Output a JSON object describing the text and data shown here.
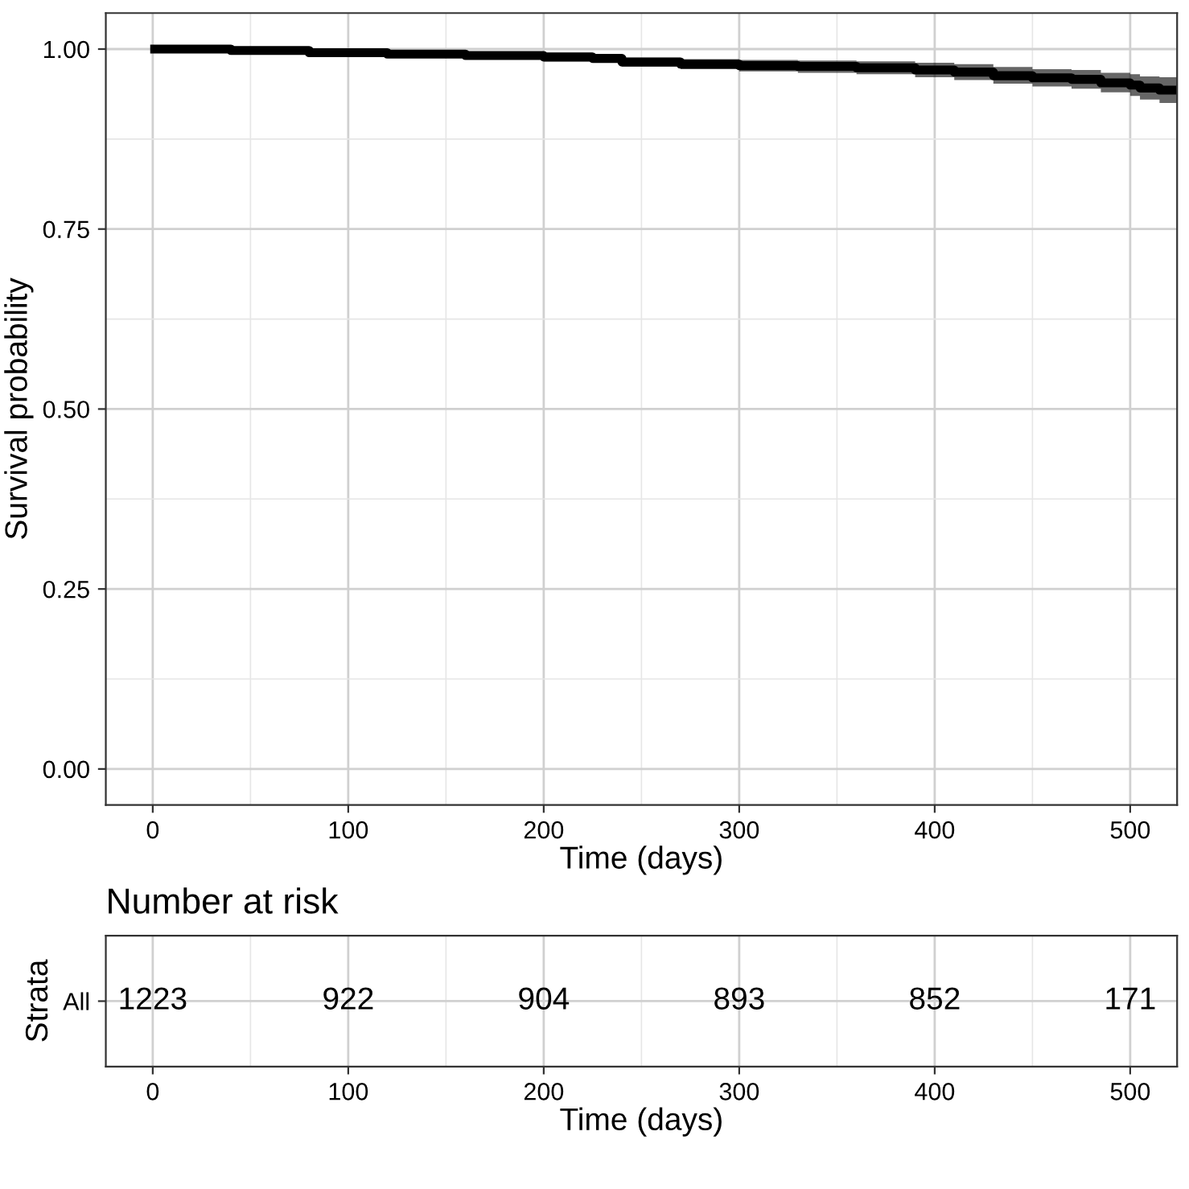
{
  "chart_data": [
    {
      "type": "step",
      "xlabel": "Time (days)",
      "ylabel": "Survival probability",
      "xlim": [
        -24,
        524
      ],
      "xticks": [
        0,
        100,
        200,
        300,
        400,
        500
      ],
      "ylim": [
        -0.05,
        1.05
      ],
      "yticks": [
        {
          "value": 0,
          "label": "0.00"
        },
        {
          "value": 0.25,
          "label": "0.25"
        },
        {
          "value": 0.5,
          "label": "0.50"
        },
        {
          "value": 0.75,
          "label": "0.75"
        },
        {
          "value": 1,
          "label": "1.00"
        }
      ],
      "grid": true,
      "line_style": "solid",
      "series": [
        {
          "color": "#000000",
          "x": [
            1,
            40,
            80,
            120,
            160,
            200,
            225,
            240,
            270,
            300,
            330,
            360,
            390,
            410,
            430,
            450,
            470,
            485,
            500,
            505,
            515,
            524
          ],
          "values": [
            1.0,
            0.998,
            0.995,
            0.993,
            0.991,
            0.989,
            0.987,
            0.982,
            0.979,
            0.977,
            0.976,
            0.974,
            0.971,
            0.968,
            0.963,
            0.96,
            0.958,
            0.953,
            0.95,
            0.946,
            0.943,
            0.943
          ],
          "lower": [
            1.0,
            0.996,
            0.992,
            0.989,
            0.986,
            0.983,
            0.981,
            0.976,
            0.972,
            0.969,
            0.967,
            0.965,
            0.961,
            0.957,
            0.952,
            0.948,
            0.945,
            0.94,
            0.935,
            0.93,
            0.925,
            0.925
          ],
          "upper": [
            1.0,
            1.0,
            0.998,
            0.997,
            0.996,
            0.995,
            0.993,
            0.988,
            0.986,
            0.985,
            0.984,
            0.983,
            0.981,
            0.979,
            0.975,
            0.972,
            0.971,
            0.967,
            0.965,
            0.962,
            0.961,
            0.961
          ]
        }
      ]
    },
    {
      "type": "heatmap",
      "title": "Number at risk",
      "xlabel": "Time (days)",
      "ylabel": "Strata",
      "y_categories": [
        "All"
      ],
      "xlim": [
        -24,
        524
      ],
      "xticks": [
        0,
        100,
        200,
        300,
        400,
        500
      ],
      "grid": true,
      "data_labels": true,
      "x": [
        0,
        100,
        200,
        300,
        400,
        500
      ],
      "cells": [
        [
          1223,
          922,
          904,
          893,
          852,
          171
        ]
      ]
    }
  ]
}
